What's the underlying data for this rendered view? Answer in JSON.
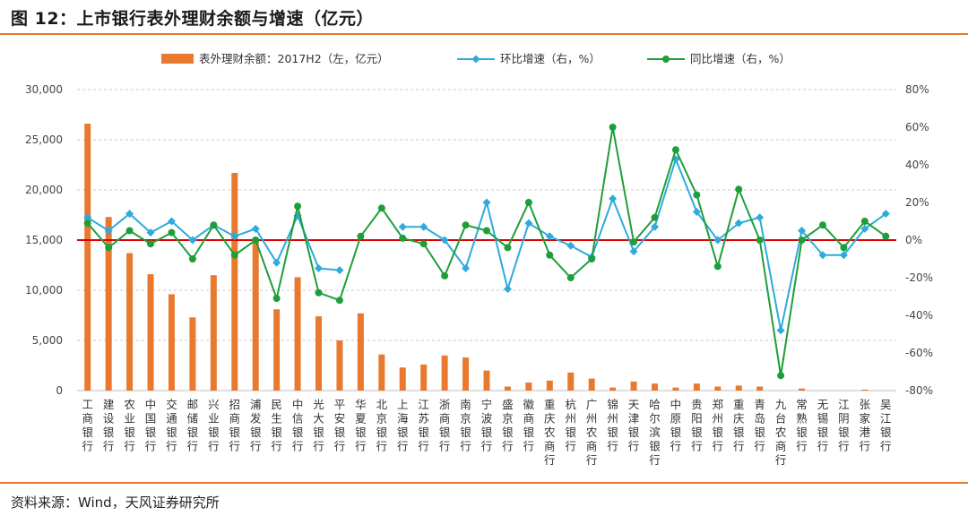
{
  "header": {
    "title": "图 12：上市银行表外理财余额与增速（亿元）"
  },
  "footer": {
    "source": "资料来源：Wind，天风证券研究所"
  },
  "colors": {
    "bar": "#e8792e",
    "hb": "#2eaadc",
    "tb": "#1e9e3a",
    "zero_line": "#e00000",
    "rule": "#e8792e"
  },
  "chart_data": {
    "type": "bar+line",
    "categories": [
      "工商银行",
      "建设银行",
      "农业银行",
      "中国银行",
      "交通银行",
      "邮储银行",
      "兴业银行",
      "招商银行",
      "浦发银行",
      "民生银行",
      "中信银行",
      "光大银行",
      "平安银行",
      "华夏银行",
      "北京银行",
      "上海银行",
      "江苏银行",
      "浙商银行",
      "南京银行",
      "宁波银行",
      "盛京银行",
      "徽商银行",
      "重庆农商行",
      "杭州银行",
      "广州农商行",
      "锦州银行",
      "天津银行",
      "哈尔滨银行",
      "中原银行",
      "贵阳银行",
      "郑州银行",
      "重庆银行",
      "青岛银行",
      "九台农商行",
      "常熟银行",
      "无锡银行",
      "江阴银行",
      "张家港行",
      "吴江银行"
    ],
    "series": [
      {
        "name": "表外理财余额：2017H2（左，亿元）",
        "type": "bar",
        "axis": "left",
        "values": [
          26600,
          17300,
          13700,
          11600,
          9600,
          7300,
          11500,
          21700,
          15200,
          8100,
          11300,
          7400,
          5000,
          7700,
          3600,
          2300,
          2600,
          3500,
          3300,
          2000,
          400,
          800,
          1000,
          1800,
          1200,
          300,
          900,
          700,
          300,
          700,
          400,
          500,
          400,
          0,
          200,
          0,
          0,
          100,
          0
        ]
      },
      {
        "name": "环比增速（右，%）",
        "type": "line",
        "axis": "right",
        "values": [
          12,
          5,
          14,
          4,
          10,
          0,
          8,
          2,
          6,
          -12,
          13,
          -15,
          -16,
          null,
          null,
          7,
          7,
          0,
          -15,
          20,
          -26,
          9,
          2,
          -3,
          -9,
          22,
          -6,
          7,
          43,
          15,
          0,
          9,
          12,
          -48,
          5,
          -8,
          -8,
          6,
          14
        ]
      },
      {
        "name": "同比增速（右，%）",
        "type": "line",
        "axis": "right",
        "values": [
          9,
          -4,
          5,
          -2,
          4,
          -10,
          8,
          -8,
          0,
          -31,
          18,
          -28,
          -32,
          2,
          17,
          1,
          -2,
          -19,
          8,
          5,
          -4,
          20,
          -8,
          -20,
          -10,
          60,
          -1,
          12,
          48,
          24,
          -14,
          27,
          0,
          -72,
          0,
          8,
          -4,
          10,
          2
        ]
      }
    ],
    "y_left": {
      "min": 0,
      "max": 30000,
      "ticks": [
        0,
        5000,
        10000,
        15000,
        20000,
        25000,
        30000
      ],
      "tick_labels": [
        "0",
        "5,000",
        "10,000",
        "15,000",
        "20,000",
        "25,000",
        "30,000"
      ]
    },
    "y_right": {
      "min": -80,
      "max": 80,
      "ticks": [
        -80,
        -60,
        -40,
        -20,
        0,
        20,
        40,
        60,
        80
      ],
      "tick_labels": [
        "-80%",
        "-60%",
        "-40%",
        "-20%",
        "0%",
        "20%",
        "40%",
        "60%",
        "80%"
      ]
    },
    "legend_position": "top",
    "grid": "horizontal-dashed"
  }
}
